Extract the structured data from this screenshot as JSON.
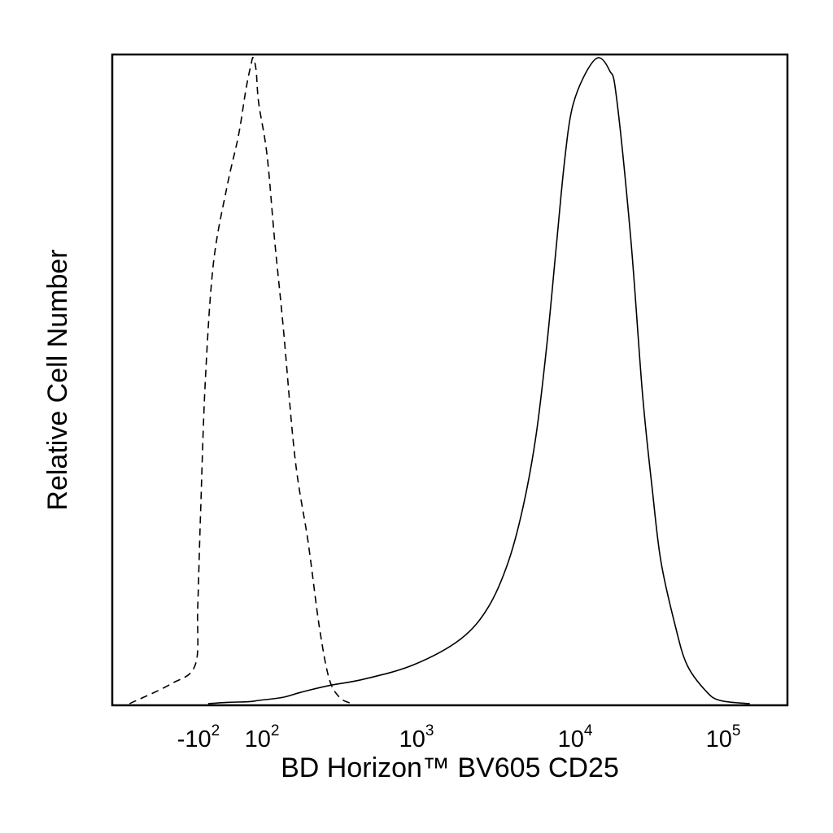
{
  "chart_data": {
    "type": "line",
    "title": "",
    "xlabel": "BD Horizon™ BV605 CD25",
    "ylabel": "Relative Cell Number",
    "x_scale": "biexponential",
    "xlim": [
      -180,
      250000
    ],
    "ylim": [
      0,
      100
    ],
    "grid": false,
    "legend": "none",
    "x_ticks": [
      {
        "value": -100,
        "base": "-10",
        "exp": "2"
      },
      {
        "value": 100,
        "base": "10",
        "exp": "2"
      },
      {
        "value": 1000,
        "base": "10",
        "exp": "3"
      },
      {
        "value": 10000,
        "base": "10",
        "exp": "4"
      },
      {
        "value": 100000,
        "base": "10",
        "exp": "5"
      }
    ],
    "series": [
      {
        "style": "dashed",
        "color": "#000000",
        "points": [
          [
            -160,
            0
          ],
          [
            -120,
            3
          ],
          [
            -100,
            6
          ],
          [
            -85,
            15
          ],
          [
            -70,
            30
          ],
          [
            -50,
            50
          ],
          [
            -25,
            68
          ],
          [
            0,
            80
          ],
          [
            20,
            88
          ],
          [
            40,
            95
          ],
          [
            60,
            99
          ],
          [
            70,
            100
          ],
          [
            85,
            98
          ],
          [
            100,
            93
          ],
          [
            115,
            85
          ],
          [
            130,
            72
          ],
          [
            150,
            58
          ],
          [
            180,
            38
          ],
          [
            220,
            25
          ],
          [
            260,
            12
          ],
          [
            300,
            4
          ],
          [
            350,
            1
          ],
          [
            420,
            0
          ]
        ]
      },
      {
        "style": "solid",
        "color": "#000000",
        "points": [
          [
            -40,
            0
          ],
          [
            0,
            0.2
          ],
          [
            50,
            0.3
          ],
          [
            100,
            0.5
          ],
          [
            150,
            1
          ],
          [
            200,
            1.8
          ],
          [
            300,
            2.8
          ],
          [
            500,
            3.8
          ],
          [
            1000,
            6
          ],
          [
            2000,
            10
          ],
          [
            3000,
            15
          ],
          [
            4000,
            22
          ],
          [
            5000,
            31
          ],
          [
            6000,
            42
          ],
          [
            7000,
            56
          ],
          [
            8000,
            71
          ],
          [
            9000,
            84
          ],
          [
            10000,
            92
          ],
          [
            12000,
            97
          ],
          [
            15000,
            100
          ],
          [
            18000,
            98
          ],
          [
            20000,
            94
          ],
          [
            25000,
            72
          ],
          [
            30000,
            48
          ],
          [
            35000,
            33
          ],
          [
            40000,
            22
          ],
          [
            50000,
            12
          ],
          [
            60000,
            6
          ],
          [
            80000,
            2
          ],
          [
            100000,
            0.5
          ],
          [
            150000,
            0
          ]
        ]
      }
    ]
  }
}
